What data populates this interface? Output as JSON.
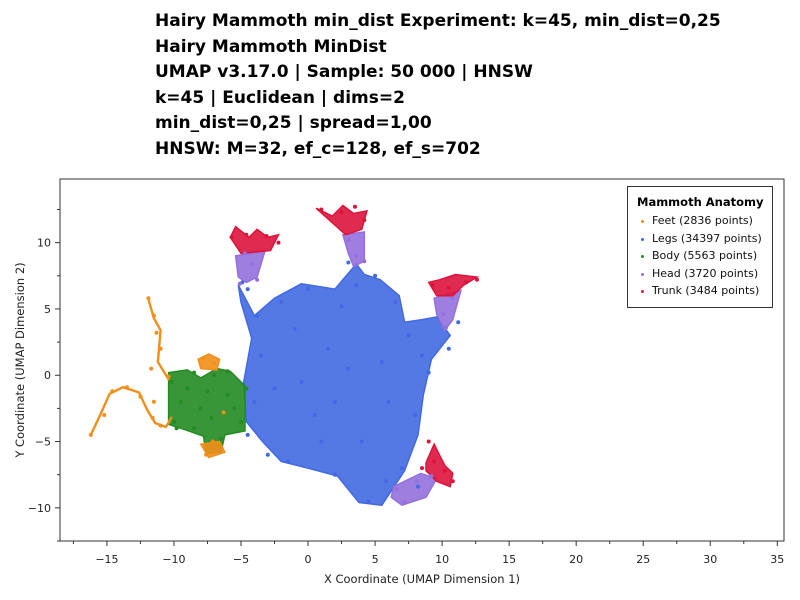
{
  "titles": [
    "Hairy Mammoth min_dist Experiment: k=45, min_dist=0,25",
    "Hairy Mammoth MinDist",
    "UMAP v3.17.0 | Sample: 50 000 | HNSW",
    "k=45 | Euclidean | dims=2",
    "min_dist=0,25 | spread=1,00",
    "HNSW: M=32, ef_c=128, ef_s=702"
  ],
  "chart_data": {
    "type": "scatter",
    "xlabel": "X Coordinate (UMAP Dimension 1)",
    "ylabel": "Y Coordinate (UMAP Dimension 2)",
    "xlim": [
      -18.5,
      35.5
    ],
    "ylim": [
      -12.5,
      14.8
    ],
    "xticks": [
      -15,
      -10,
      -5,
      0,
      5,
      10,
      15,
      20,
      25,
      30,
      35
    ],
    "xtick_labels": [
      "−15",
      "−10",
      "−5",
      "0",
      "5",
      "10",
      "15",
      "20",
      "25",
      "30",
      "35"
    ],
    "yticks": [
      -10,
      -5,
      0,
      5,
      10
    ],
    "ytick_labels": [
      "−10",
      "−5",
      "0",
      "5",
      "10"
    ],
    "grid": false,
    "legend": {
      "title": "Mammoth Anatomy",
      "placement": "top-right",
      "entries": [
        {
          "label": "Feet (2836 points)",
          "color": "#f28e1a"
        },
        {
          "label": "Legs (34397 points)",
          "color": "#4169e1"
        },
        {
          "label": "Body (5563 points)",
          "color": "#228b22"
        },
        {
          "label": "Head (3720 points)",
          "color": "#9370db"
        },
        {
          "label": "Trunk (3484 points)",
          "color": "#dc143c"
        }
      ]
    },
    "series": [
      {
        "name": "Feet",
        "color": "#f28e1a",
        "points": [
          [
            -16.2,
            -4.5
          ],
          [
            -15.2,
            -3.0
          ],
          [
            -14.6,
            -1.2
          ],
          [
            -13.5,
            -0.9
          ],
          [
            -12.5,
            -1.6
          ],
          [
            -11.6,
            -3.2
          ],
          [
            -11.0,
            -3.8
          ],
          [
            -11.5,
            -2.0
          ],
          [
            -11.7,
            0.5
          ],
          [
            -11.0,
            2.0
          ],
          [
            -11.3,
            3.2
          ],
          [
            -11.5,
            4.5
          ],
          [
            -11.9,
            5.8
          ],
          [
            -10.4,
            -0.1
          ],
          [
            -7.8,
            1.3
          ],
          [
            -7.0,
            0.9
          ],
          [
            -6.3,
            -2.8
          ],
          [
            -7.1,
            -5.0
          ],
          [
            -7.6,
            -6.0
          ]
        ]
      },
      {
        "name": "Legs",
        "color": "#4169e1",
        "points": [
          [
            -4.5,
            6.5
          ],
          [
            -3.8,
            4.5
          ],
          [
            -3.5,
            1.5
          ],
          [
            -4.0,
            -2.0
          ],
          [
            -2.0,
            5.5
          ],
          [
            0.0,
            6.5
          ],
          [
            2.5,
            5.2
          ],
          [
            3.0,
            0.5
          ],
          [
            0.5,
            -3.0
          ],
          [
            -1.5,
            -6.5
          ],
          [
            -3.0,
            -6.0
          ],
          [
            2.0,
            -7.5
          ],
          [
            4.5,
            -9.5
          ],
          [
            7.0,
            -7.0
          ],
          [
            8.0,
            -3.0
          ],
          [
            9.0,
            0.2
          ],
          [
            10.5,
            2.0
          ],
          [
            11.2,
            4.0
          ],
          [
            5.0,
            7.5
          ],
          [
            3.6,
            6.8
          ],
          [
            3.0,
            8.5
          ],
          [
            6.5,
            5.5
          ],
          [
            -4.9,
            7.0
          ],
          [
            -2.5,
            -1.0
          ],
          [
            1.5,
            2.0
          ],
          [
            5.5,
            1.0
          ],
          [
            4.0,
            -5.0
          ],
          [
            -0.5,
            -0.5
          ],
          [
            7.5,
            3.0
          ],
          [
            2.0,
            -2.0
          ],
          [
            -1.0,
            3.5
          ],
          [
            6.0,
            -2.0
          ],
          [
            8.5,
            1.5
          ],
          [
            -4.5,
            -4.5
          ],
          [
            5.8,
            -8.0
          ],
          [
            8.2,
            -8.4
          ],
          [
            1.0,
            -5.0
          ]
        ]
      },
      {
        "name": "Body",
        "color": "#228b22",
        "points": [
          [
            -10.2,
            -0.5
          ],
          [
            -10.0,
            -3.5
          ],
          [
            -9.0,
            -1.0
          ],
          [
            -8.0,
            -2.5
          ],
          [
            -7.0,
            0.0
          ],
          [
            -6.0,
            -1.5
          ],
          [
            -5.0,
            -3.5
          ],
          [
            -4.6,
            -1.0
          ],
          [
            -6.5,
            -4.8
          ],
          [
            -8.5,
            -4.0
          ],
          [
            -9.5,
            -2.0
          ],
          [
            -7.5,
            -1.2
          ],
          [
            -6.0,
            0.3
          ],
          [
            -8.5,
            0.2
          ],
          [
            -5.5,
            -2.5
          ],
          [
            -9.8,
            -4.0
          ],
          [
            -7.2,
            -3.2
          ]
        ]
      },
      {
        "name": "Head",
        "color": "#9370db",
        "points": [
          [
            -4.7,
            9.2
          ],
          [
            -4.2,
            8.4
          ],
          [
            -3.8,
            7.2
          ],
          [
            -5.1,
            6.9
          ],
          [
            3.0,
            10.2
          ],
          [
            3.6,
            9.0
          ],
          [
            4.2,
            8.6
          ],
          [
            10.1,
            4.6
          ],
          [
            10.8,
            5.8
          ],
          [
            10.3,
            3.6
          ],
          [
            6.6,
            -8.6
          ],
          [
            8.1,
            -8.0
          ],
          [
            9.2,
            -7.6
          ],
          [
            7.2,
            -9.6
          ]
        ]
      },
      {
        "name": "Trunk",
        "color": "#dc143c",
        "points": [
          [
            -5.7,
            10.4
          ],
          [
            -4.6,
            10.6
          ],
          [
            -3.1,
            10.5
          ],
          [
            -2.2,
            10.0
          ],
          [
            1.0,
            12.5
          ],
          [
            2.5,
            12.3
          ],
          [
            3.5,
            12.7
          ],
          [
            4.2,
            11.7
          ],
          [
            9.3,
            6.8
          ],
          [
            10.5,
            6.6
          ],
          [
            11.8,
            7.0
          ],
          [
            12.6,
            7.2
          ],
          [
            9.4,
            -6.5
          ],
          [
            9.0,
            -5.0
          ],
          [
            10.2,
            -7.2
          ],
          [
            10.8,
            -8.0
          ],
          [
            8.5,
            -7.0
          ]
        ]
      }
    ]
  }
}
